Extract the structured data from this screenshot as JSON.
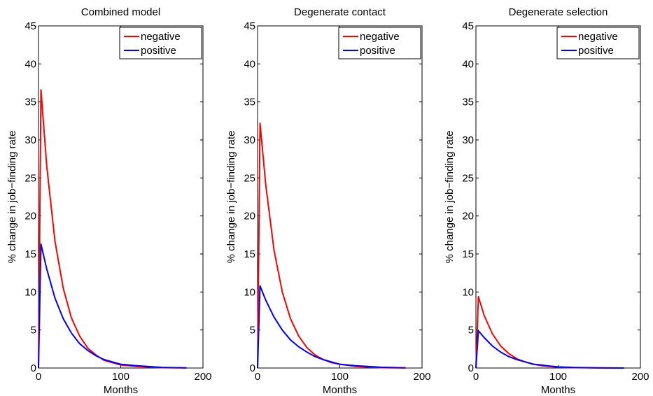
{
  "chart_data": [
    {
      "type": "line",
      "title": "Combined model",
      "xlabel": "Months",
      "ylabel": "% change in job−finding rate",
      "xlim": [
        0,
        200
      ],
      "ylim": [
        0,
        45
      ],
      "xticks": [
        "0",
        "100",
        "200"
      ],
      "yticks": [
        "0",
        "5",
        "10",
        "15",
        "20",
        "25",
        "30",
        "35",
        "40",
        "45"
      ],
      "legend": "top-right",
      "grid": false,
      "series": [
        {
          "name": "negative",
          "color": "#ff0000",
          "x": [
            0,
            3,
            10,
            20,
            30,
            40,
            50,
            60,
            70,
            80,
            90,
            100,
            120,
            150,
            180
          ],
          "y": [
            0,
            36.6,
            26.5,
            16.7,
            10.5,
            6.6,
            4.2,
            2.6,
            1.7,
            1.0,
            0.7,
            0.4,
            0.2,
            0.05,
            0.01
          ]
        },
        {
          "name": "positive",
          "color": "#0000ff",
          "x": [
            0,
            3,
            10,
            20,
            30,
            40,
            50,
            60,
            70,
            80,
            90,
            100,
            120,
            150,
            180
          ],
          "y": [
            0,
            16.3,
            13.0,
            9.2,
            6.5,
            4.6,
            3.2,
            2.3,
            1.6,
            1.1,
            0.8,
            0.5,
            0.3,
            0.08,
            0.02
          ]
        }
      ]
    },
    {
      "type": "line",
      "title": "Degenerate contact",
      "xlabel": "Months",
      "ylabel": "% change in job−finding rate",
      "xlim": [
        0,
        200
      ],
      "ylim": [
        0,
        45
      ],
      "xticks": [
        "0",
        "100",
        "200"
      ],
      "yticks": [
        "0",
        "5",
        "10",
        "15",
        "20",
        "25",
        "30",
        "35",
        "40",
        "45"
      ],
      "legend": "top-right",
      "grid": false,
      "series": [
        {
          "name": "negative",
          "color": "#ff0000",
          "x": [
            0,
            3,
            10,
            20,
            30,
            40,
            50,
            60,
            70,
            80,
            90,
            100,
            120,
            150,
            180
          ],
          "y": [
            0,
            32.2,
            24.0,
            15.5,
            10.0,
            6.5,
            4.2,
            2.7,
            1.7,
            1.1,
            0.7,
            0.5,
            0.2,
            0.05,
            0.01
          ]
        },
        {
          "name": "positive",
          "color": "#0000ff",
          "x": [
            0,
            3,
            10,
            20,
            30,
            40,
            50,
            60,
            70,
            80,
            90,
            100,
            120,
            150,
            180
          ],
          "y": [
            0,
            10.8,
            8.9,
            6.7,
            5.0,
            3.7,
            2.8,
            2.1,
            1.5,
            1.1,
            0.8,
            0.5,
            0.3,
            0.1,
            0.02
          ]
        }
      ]
    },
    {
      "type": "line",
      "title": "Degenerate selection",
      "xlabel": "Months",
      "ylabel": "% change in job−finding rate",
      "xlim": [
        0,
        200
      ],
      "ylim": [
        0,
        45
      ],
      "xticks": [
        "0",
        "100",
        "200"
      ],
      "yticks": [
        "0",
        "5",
        "10",
        "15",
        "20",
        "25",
        "30",
        "35",
        "40",
        "45"
      ],
      "legend": "top-right",
      "grid": false,
      "series": [
        {
          "name": "negative",
          "color": "#ff0000",
          "x": [
            0,
            3,
            10,
            20,
            30,
            40,
            50,
            60,
            70,
            80,
            90,
            100,
            120,
            150,
            180
          ],
          "y": [
            0,
            9.4,
            6.9,
            4.5,
            2.9,
            1.9,
            1.2,
            0.8,
            0.5,
            0.3,
            0.2,
            0.1,
            0.05,
            0.01,
            0.0
          ]
        },
        {
          "name": "positive",
          "color": "#0000ff",
          "x": [
            0,
            3,
            10,
            20,
            30,
            40,
            50,
            60,
            70,
            80,
            90,
            100,
            120,
            150,
            180
          ],
          "y": [
            0,
            4.9,
            4.0,
            2.9,
            2.1,
            1.5,
            1.1,
            0.8,
            0.5,
            0.4,
            0.25,
            0.15,
            0.07,
            0.02,
            0.0
          ]
        }
      ]
    }
  ]
}
